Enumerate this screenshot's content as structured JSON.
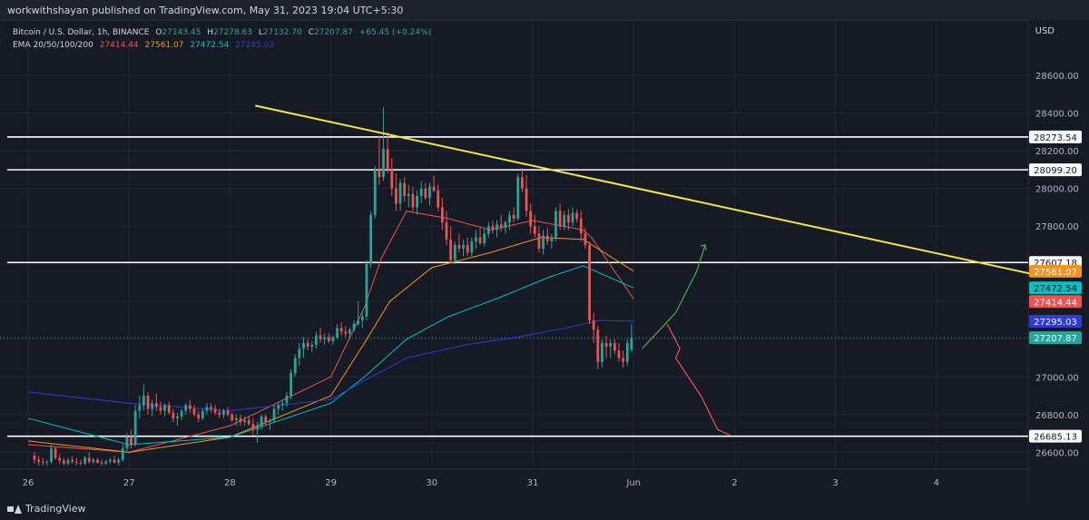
{
  "header": {
    "publisher_line": "workwithshayan published on TradingView.com, May 31, 2023 19:04 UTC+5:30"
  },
  "legend": {
    "symbol": "Bitcoin / U.S. Dollar, 1h, BINANCE",
    "o_label": "O",
    "o_value": "27143.45",
    "h_label": "H",
    "h_value": "27278.63",
    "l_label": "L",
    "l_value": "27132.70",
    "c_label": "C",
    "c_value": "27207.87",
    "change": "+65.45 (+0.24%)",
    "ema_label": "EMA 20/50/100/200",
    "ema20": "27414.44",
    "ema50": "27561.07",
    "ema100": "27472.54",
    "ema200": "27295.03"
  },
  "currency": "USD",
  "footer": {
    "brand": "TradingView"
  },
  "colors": {
    "background": "#161a25",
    "up": "#26a69a",
    "down": "#ef5350",
    "ema20": "#ef5350",
    "ema50": "#f7931a",
    "ema100": "#00c2c2",
    "ema200": "#2e3bd6",
    "trendline": "#f5e642",
    "level": "#ffffff",
    "projection_up": "#4caf50",
    "projection_down": "#ef5350"
  },
  "chart_data": {
    "type": "candlestick",
    "title": "Bitcoin / U.S. Dollar, 1h, BINANCE",
    "ylabel": "USD",
    "ylim": [
      26510,
      28885
    ],
    "y_ticks": [
      "26600.00",
      "26800.00",
      "27000.00",
      "27200.00",
      "27400.00",
      "27600.00",
      "27800.00",
      "28000.00",
      "28200.00",
      "28400.00",
      "28600.00"
    ],
    "x_ticks": [
      "26",
      "27",
      "28",
      "29",
      "30",
      "31",
      "Jun",
      "2",
      "3",
      "4"
    ],
    "levels": [
      28273.54,
      28099.2,
      27607.18,
      26685.13
    ],
    "level_labels": [
      "28273.54",
      "28099.20",
      "27607.18",
      "26685.13"
    ],
    "last_price": 27207.87,
    "last_price_label": "27207.87",
    "ema_labels": [
      {
        "name": "EMA 20",
        "value": 27414.44,
        "label": "27414.44"
      },
      {
        "name": "EMA 50",
        "value": 27561.07,
        "label": "27561.07"
      },
      {
        "name": "EMA 100",
        "value": 27472.54,
        "label": "27472.54"
      },
      {
        "name": "EMA 200",
        "value": 27295.03,
        "label": "27295.03"
      }
    ],
    "candles_per_day": 24,
    "first_date": "May 26",
    "trendline": {
      "from": {
        "t": 54,
        "price": 28440
      },
      "to": {
        "t": 240,
        "price": 27540
      }
    },
    "projection_up": [
      [
        146,
        27150
      ],
      [
        154,
        27340
      ],
      [
        159,
        27560
      ],
      [
        161,
        27700
      ]
    ],
    "projection_down": [
      [
        152,
        27280
      ],
      [
        155,
        27150
      ],
      [
        154,
        27100
      ],
      [
        160,
        26900
      ],
      [
        164,
        26720
      ],
      [
        167,
        26690
      ]
    ],
    "ohlc": [
      [
        26580,
        26600,
        26540,
        26560
      ],
      [
        26560,
        26580,
        26530,
        26550
      ],
      [
        26550,
        26570,
        26530,
        26545
      ],
      [
        26545,
        26560,
        26530,
        26550
      ],
      [
        26550,
        26640,
        26540,
        26620
      ],
      [
        26620,
        26630,
        26560,
        26570
      ],
      [
        26570,
        26590,
        26540,
        26555
      ],
      [
        26555,
        26570,
        26530,
        26540
      ],
      [
        26540,
        26570,
        26530,
        26560
      ],
      [
        26560,
        26580,
        26540,
        26550
      ],
      [
        26550,
        26570,
        26530,
        26545
      ],
      [
        26545,
        26560,
        26530,
        26540
      ],
      [
        26540,
        26580,
        26530,
        26570
      ],
      [
        26570,
        26600,
        26540,
        26550
      ],
      [
        26550,
        26570,
        26540,
        26560
      ],
      [
        26560,
        26570,
        26540,
        26545
      ],
      [
        26545,
        26560,
        26530,
        26540
      ],
      [
        26540,
        26560,
        26530,
        26550
      ],
      [
        26550,
        26570,
        26540,
        26560
      ],
      [
        26560,
        26580,
        26540,
        26545
      ],
      [
        26545,
        26570,
        26530,
        26560
      ],
      [
        26560,
        26640,
        26550,
        26620
      ],
      [
        26620,
        26700,
        26600,
        26680
      ],
      [
        26680,
        26720,
        26620,
        26640
      ],
      [
        26640,
        26850,
        26630,
        26820
      ],
      [
        26820,
        26900,
        26780,
        26850
      ],
      [
        26850,
        26960,
        26820,
        26900
      ],
      [
        26900,
        26920,
        26800,
        26830
      ],
      [
        26830,
        26880,
        26790,
        26860
      ],
      [
        26860,
        26910,
        26820,
        26840
      ],
      [
        26840,
        26870,
        26800,
        26820
      ],
      [
        26820,
        26860,
        26790,
        26850
      ],
      [
        26850,
        26870,
        26800,
        26810
      ],
      [
        26810,
        26830,
        26760,
        26780
      ],
      [
        26780,
        26810,
        26740,
        26790
      ],
      [
        26790,
        26830,
        26770,
        26820
      ],
      [
        26820,
        26860,
        26800,
        26850
      ],
      [
        26850,
        26880,
        26810,
        26830
      ],
      [
        26830,
        26850,
        26790,
        26800
      ],
      [
        26800,
        26820,
        26760,
        26780
      ],
      [
        26780,
        26830,
        26770,
        26820
      ],
      [
        26820,
        26860,
        26800,
        26840
      ],
      [
        26840,
        26860,
        26810,
        26830
      ],
      [
        26830,
        26850,
        26800,
        26810
      ],
      [
        26810,
        26830,
        26780,
        26800
      ],
      [
        26800,
        26830,
        26780,
        26820
      ],
      [
        26820,
        26840,
        26790,
        26800
      ],
      [
        26800,
        26810,
        26760,
        26770
      ],
      [
        26770,
        26800,
        26740,
        26780
      ],
      [
        26780,
        26800,
        26740,
        26760
      ],
      [
        26760,
        26790,
        26740,
        26770
      ],
      [
        26770,
        26790,
        26740,
        26750
      ],
      [
        26750,
        26780,
        26690,
        26720
      ],
      [
        26720,
        26760,
        26650,
        26740
      ],
      [
        26740,
        26800,
        26720,
        26790
      ],
      [
        26790,
        26800,
        26740,
        26760
      ],
      [
        26760,
        26780,
        26720,
        26770
      ],
      [
        26770,
        26850,
        26760,
        26830
      ],
      [
        26830,
        26870,
        26800,
        26850
      ],
      [
        26850,
        26880,
        26820,
        26860
      ],
      [
        26860,
        26920,
        26840,
        26900
      ],
      [
        26900,
        27040,
        26880,
        27020
      ],
      [
        27020,
        27120,
        27000,
        27100
      ],
      [
        27100,
        27180,
        27060,
        27150
      ],
      [
        27150,
        27210,
        27100,
        27180
      ],
      [
        27180,
        27200,
        27140,
        27160
      ],
      [
        27160,
        27190,
        27130,
        27170
      ],
      [
        27170,
        27240,
        27150,
        27220
      ],
      [
        27220,
        27260,
        27180,
        27200
      ],
      [
        27200,
        27230,
        27170,
        27210
      ],
      [
        27210,
        27230,
        27180,
        27190
      ],
      [
        27190,
        27220,
        27170,
        27210
      ],
      [
        27210,
        27280,
        27200,
        27260
      ],
      [
        27260,
        27290,
        27220,
        27240
      ],
      [
        27240,
        27270,
        27210,
        27230
      ],
      [
        27230,
        27260,
        27200,
        27250
      ],
      [
        27250,
        27300,
        27240,
        27280
      ],
      [
        27280,
        27400,
        27270,
        27300
      ],
      [
        27300,
        27350,
        27260,
        27320
      ],
      [
        27320,
        27620,
        27300,
        27600
      ],
      [
        27600,
        27880,
        27580,
        27860
      ],
      [
        27860,
        28120,
        27840,
        28100
      ],
      [
        28100,
        28280,
        28020,
        28060
      ],
      [
        28060,
        28430,
        28040,
        28210
      ],
      [
        28210,
        28300,
        28080,
        28100
      ],
      [
        28100,
        28160,
        27960,
        28000
      ],
      [
        28000,
        28080,
        27880,
        27920
      ],
      [
        27920,
        28050,
        27880,
        28030
      ],
      [
        28030,
        28060,
        27930,
        27960
      ],
      [
        27960,
        28020,
        27900,
        27970
      ],
      [
        27970,
        28010,
        27880,
        27900
      ],
      [
        27900,
        27990,
        27860,
        27960
      ],
      [
        27960,
        28040,
        27920,
        28000
      ],
      [
        28000,
        28030,
        27940,
        27950
      ],
      [
        27950,
        28030,
        27910,
        28010
      ],
      [
        28010,
        28070,
        27980,
        27990
      ],
      [
        27990,
        28020,
        27880,
        27900
      ],
      [
        27900,
        27950,
        27780,
        27820
      ],
      [
        27820,
        27880,
        27700,
        27730
      ],
      [
        27730,
        27800,
        27600,
        27620
      ],
      [
        27620,
        27720,
        27600,
        27700
      ],
      [
        27700,
        27760,
        27660,
        27680
      ],
      [
        27680,
        27730,
        27640,
        27700
      ],
      [
        27700,
        27740,
        27640,
        27660
      ],
      [
        27660,
        27740,
        27640,
        27720
      ],
      [
        27720,
        27780,
        27680,
        27740
      ],
      [
        27740,
        27790,
        27700,
        27710
      ],
      [
        27710,
        27790,
        27690,
        27760
      ],
      [
        27760,
        27820,
        27740,
        27800
      ],
      [
        27800,
        27830,
        27760,
        27780
      ],
      [
        27780,
        27830,
        27740,
        27810
      ],
      [
        27810,
        27860,
        27770,
        27790
      ],
      [
        27790,
        27830,
        27760,
        27820
      ],
      [
        27820,
        27880,
        27780,
        27860
      ],
      [
        27860,
        27900,
        27820,
        27840
      ],
      [
        27840,
        28080,
        27830,
        28060
      ],
      [
        28060,
        28110,
        27980,
        28000
      ],
      [
        28000,
        28070,
        27850,
        27880
      ],
      [
        27880,
        27920,
        27760,
        27800
      ],
      [
        27800,
        27860,
        27740,
        27760
      ],
      [
        27760,
        27800,
        27660,
        27680
      ],
      [
        27680,
        27780,
        27650,
        27750
      ],
      [
        27750,
        27790,
        27700,
        27720
      ],
      [
        27720,
        27760,
        27680,
        27740
      ],
      [
        27740,
        27900,
        27720,
        27880
      ],
      [
        27880,
        27920,
        27780,
        27800
      ],
      [
        27800,
        27880,
        27780,
        27860
      ],
      [
        27860,
        27890,
        27780,
        27820
      ],
      [
        27820,
        27900,
        27800,
        27870
      ],
      [
        27870,
        27890,
        27820,
        27840
      ],
      [
        27840,
        27880,
        27720,
        27760
      ],
      [
        27760,
        27790,
        27680,
        27700
      ],
      [
        27700,
        27720,
        27280,
        27300
      ],
      [
        27300,
        27340,
        27180,
        27250
      ],
      [
        27250,
        27270,
        27040,
        27080
      ],
      [
        27080,
        27200,
        27050,
        27180
      ],
      [
        27180,
        27220,
        27100,
        27160
      ],
      [
        27160,
        27200,
        27100,
        27180
      ],
      [
        27180,
        27200,
        27120,
        27140
      ],
      [
        27140,
        27180,
        27080,
        27100
      ],
      [
        27100,
        27140,
        27050,
        27080
      ],
      [
        27080,
        27200,
        27060,
        27180
      ],
      [
        27143,
        27279,
        27133,
        27208
      ]
    ],
    "ema": {
      "ema20": [
        [
          0,
          26640
        ],
        [
          24,
          26600
        ],
        [
          48,
          26740
        ],
        [
          72,
          27000
        ],
        [
          80,
          27370
        ],
        [
          84,
          27630
        ],
        [
          90,
          27880
        ],
        [
          100,
          27840
        ],
        [
          110,
          27780
        ],
        [
          120,
          27830
        ],
        [
          132,
          27780
        ],
        [
          134,
          27740
        ],
        [
          144,
          27414
        ]
      ],
      "ema50": [
        [
          0,
          26660
        ],
        [
          24,
          26600
        ],
        [
          48,
          26680
        ],
        [
          72,
          26900
        ],
        [
          80,
          27180
        ],
        [
          86,
          27400
        ],
        [
          96,
          27580
        ],
        [
          110,
          27660
        ],
        [
          122,
          27740
        ],
        [
          132,
          27730
        ],
        [
          144,
          27561
        ]
      ],
      "ema100": [
        [
          0,
          26780
        ],
        [
          24,
          26640
        ],
        [
          48,
          26680
        ],
        [
          72,
          26860
        ],
        [
          80,
          27000
        ],
        [
          90,
          27200
        ],
        [
          100,
          27320
        ],
        [
          112,
          27420
        ],
        [
          124,
          27530
        ],
        [
          132,
          27590
        ],
        [
          144,
          27472
        ]
      ],
      "ema200": [
        [
          0,
          26920
        ],
        [
          24,
          26860
        ],
        [
          48,
          26820
        ],
        [
          72,
          26880
        ],
        [
          80,
          26980
        ],
        [
          90,
          27100
        ],
        [
          104,
          27170
        ],
        [
          116,
          27210
        ],
        [
          128,
          27260
        ],
        [
          136,
          27300
        ],
        [
          144,
          27295
        ]
      ]
    }
  }
}
